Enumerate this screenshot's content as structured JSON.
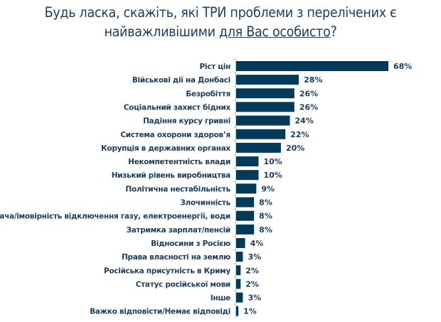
{
  "chart_data": {
    "type": "bar",
    "orientation": "horizontal",
    "title_line1": "Будь ласка, скажіть, які ТРИ проблеми з перелічених є",
    "title_line2_plain": "найважливішими ",
    "title_line2_underlined": "для Вас особисто",
    "title_line2_end": "?",
    "categories": [
      "Ріст цін",
      "Військові дії на Донбасі",
      "Безробіття",
      "Соціальний захист бідних",
      "Падіння курсу гривні",
      "Система охорони здоров’я",
      "Корупція в державних органах",
      "Некомпетентність влади",
      "Низький рівень виробництва",
      "Політична нестабільність",
      "Злочинність",
      "Нестача/імовірність відключення газу, електроенергії, води",
      "Затримка зарплат/пенсій",
      "Відносини з Росією",
      "Права власності на землю",
      "Російська присутність в Криму",
      "Статус російської мови",
      "Інше",
      "Важко відповісти/Немає відповіді"
    ],
    "values": [
      68,
      28,
      26,
      26,
      24,
      22,
      20,
      10,
      10,
      9,
      8,
      8,
      8,
      4,
      3,
      2,
      2,
      3,
      1
    ],
    "value_labels": [
      "68%",
      "28%",
      "26%",
      "26%",
      "24%",
      "22%",
      "20%",
      "10%",
      "10%",
      "9%",
      "8%",
      "8%",
      "8%",
      "4%",
      "3%",
      "2%",
      "2%",
      "3%",
      "1%"
    ],
    "xlim": [
      0,
      68
    ],
    "grid": false,
    "legend": "none",
    "bar_color": "#033a5a"
  }
}
